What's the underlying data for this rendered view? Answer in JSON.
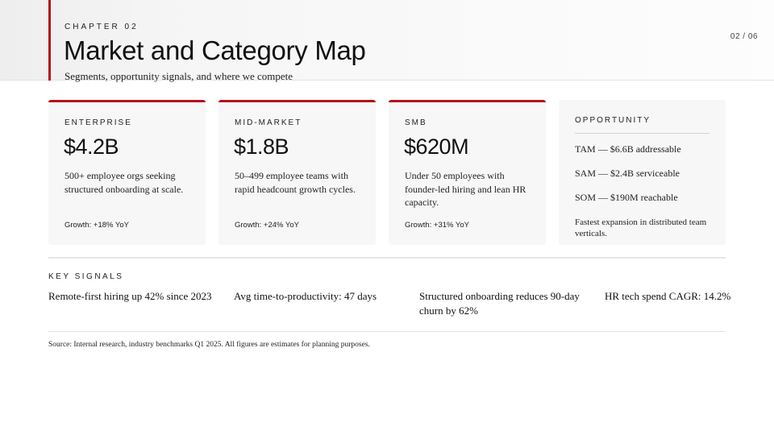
{
  "header": {
    "chapter": "CHAPTER 02",
    "title": "Market and Category Map",
    "subtitle": "Segments, opportunity signals, and where we compete",
    "page_number": "02 / 06"
  },
  "segments": [
    {
      "label": "ENTERPRISE",
      "value": "$4.2B",
      "description": "500+ employee orgs seeking structured onboarding at scale.",
      "growth": "Growth: +18% YoY"
    },
    {
      "label": "MID-MARKET",
      "value": "$1.8B",
      "description": "50–499 employee teams with rapid headcount growth cycles.",
      "growth": "Growth: +24% YoY"
    },
    {
      "label": "SMB",
      "value": "$620M",
      "description": "Under 50 employees with founder-led hiring and lean HR capacity.",
      "growth": "Growth: +31% YoY"
    }
  ],
  "opportunity": {
    "label": "OPPORTUNITY",
    "metrics": [
      "TAM — $6.6B addressable",
      "SAM — $2.4B serviceable",
      "SOM — $190M reachable"
    ],
    "note": "Fastest expansion in distributed team verticals."
  },
  "key_signals": {
    "label": "KEY SIGNALS",
    "items": [
      "Remote-first hiring up 42% since 2023",
      "Avg time-to-productivity: 47 days",
      "Structured onboarding reduces 90-day churn by 62%",
      "HR tech spend CAGR: 14.2%"
    ]
  },
  "source": "Source: Internal research, industry benchmarks Q1 2025. All figures are estimates for planning purposes.",
  "colors": {
    "accent": "#b5121b",
    "card_bg": "#f7f7f7"
  }
}
